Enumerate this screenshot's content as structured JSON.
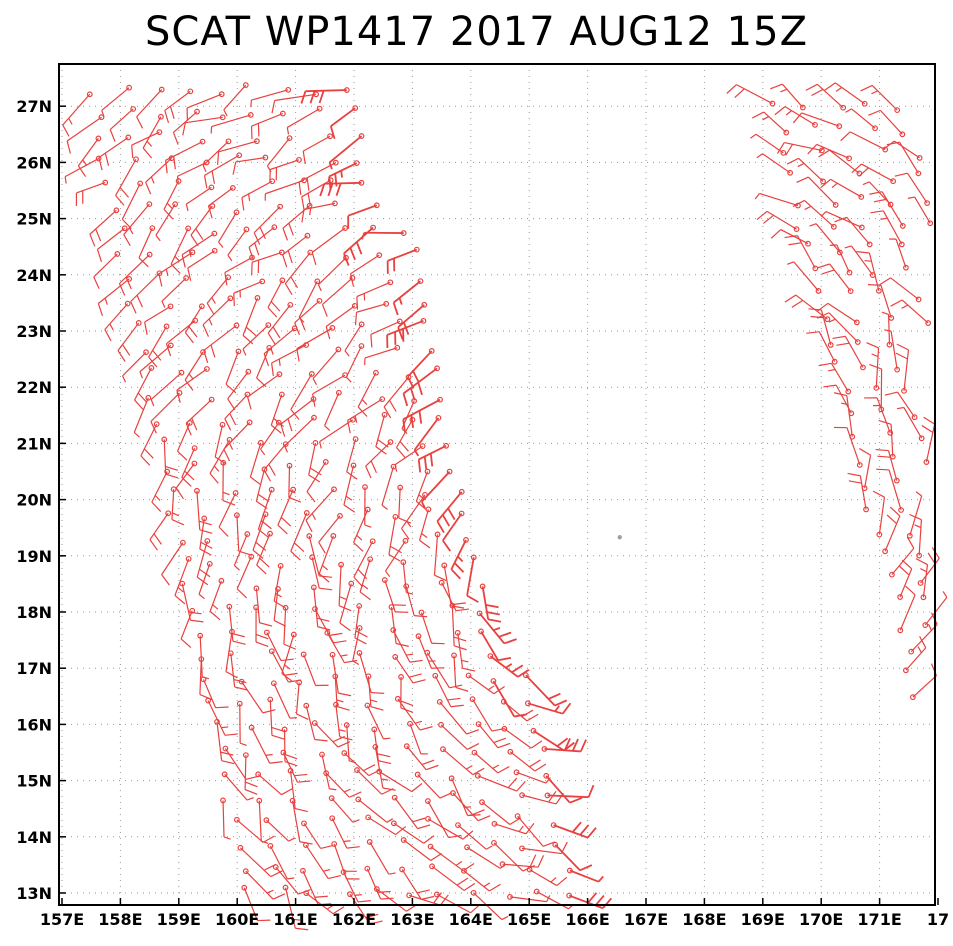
{
  "title": "SCAT WP1417 2017 AUG12 15Z",
  "colors": {
    "barb": "#e8413f",
    "grid": "#9a9a9a",
    "frame": "#000000",
    "center_marker": "#a0a0a0"
  },
  "axes": {
    "lon_ticks": [
      "157E",
      "158E",
      "159E",
      "160E",
      "161E",
      "162E",
      "163E",
      "164E",
      "165E",
      "166E",
      "167E",
      "168E",
      "169E",
      "170E",
      "171E",
      "17"
    ],
    "lat_ticks": [
      "13N",
      "14N",
      "15N",
      "16N",
      "17N",
      "18N",
      "19N",
      "20N",
      "21N",
      "22N",
      "23N",
      "24N",
      "25N",
      "26N",
      "27N"
    ],
    "lon_range": [
      157,
      171.8
    ],
    "lat_range": [
      12.8,
      28.0
    ],
    "grid": "dotted"
  },
  "storm_center": {
    "lon": 166.55,
    "lat": 19.33
  },
  "swaths": [
    {
      "name": "west",
      "lat_min": 12.9,
      "lat_max": 27.3,
      "lon_west_at_27": 157.5,
      "lon_east_at_27": 162.3,
      "lon_west_at_13": 160.2,
      "lon_east_at_13": 166.0
    },
    {
      "name": "east",
      "lat_min": 16.2,
      "lat_max": 27.0,
      "lon_west_at_27": 169.2,
      "lon_west_at_16": 171.7
    }
  ]
}
